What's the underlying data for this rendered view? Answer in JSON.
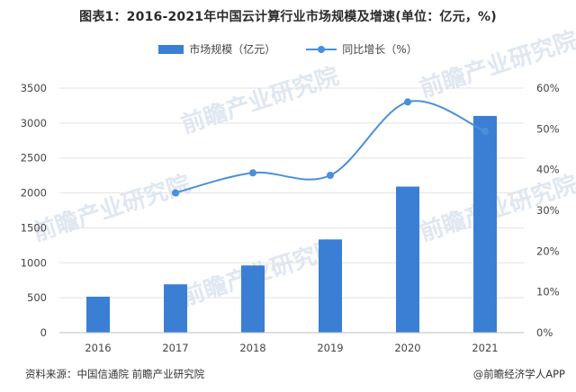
{
  "title": "图表1：2016-2021年中国云计算行业市场规模及增速(单位：亿元，%)",
  "legend": {
    "bar_label": "市场规模（亿元）",
    "line_label": "同比增长（%）"
  },
  "footer": {
    "source": "资料来源：中国信通院 前瞻产业研究院",
    "brand": "@前瞻经济学人APP",
    "brand_icon": "at-icon"
  },
  "watermark": "前瞻产业研究院",
  "colors": {
    "bar": "#3b7fd4",
    "line": "#4a90d9",
    "grid": "#e3e3e3"
  },
  "chart_data": {
    "type": "bar",
    "categories": [
      "2016",
      "2017",
      "2018",
      "2019",
      "2020",
      "2021"
    ],
    "series": [
      {
        "name": "市场规模（亿元）",
        "type": "bar",
        "axis": "left",
        "values": [
          515,
          692,
          962,
          1334,
          2091,
          3102
        ]
      },
      {
        "name": "同比增长（%）",
        "type": "line",
        "axis": "right",
        "smooth": true,
        "values": [
          null,
          34.3,
          39.2,
          38.6,
          56.6,
          49.4
        ]
      }
    ],
    "y_left": {
      "min": 0,
      "max": 3500,
      "ticks": [
        "0",
        "500",
        "1000",
        "1500",
        "2000",
        "2500",
        "3000",
        "3500"
      ]
    },
    "y_right": {
      "min": 0,
      "max": 60,
      "ticks": [
        "0%",
        "10%",
        "20%",
        "30%",
        "40%",
        "50%",
        "60%"
      ]
    },
    "grid": true,
    "legend_position": "top-center"
  }
}
